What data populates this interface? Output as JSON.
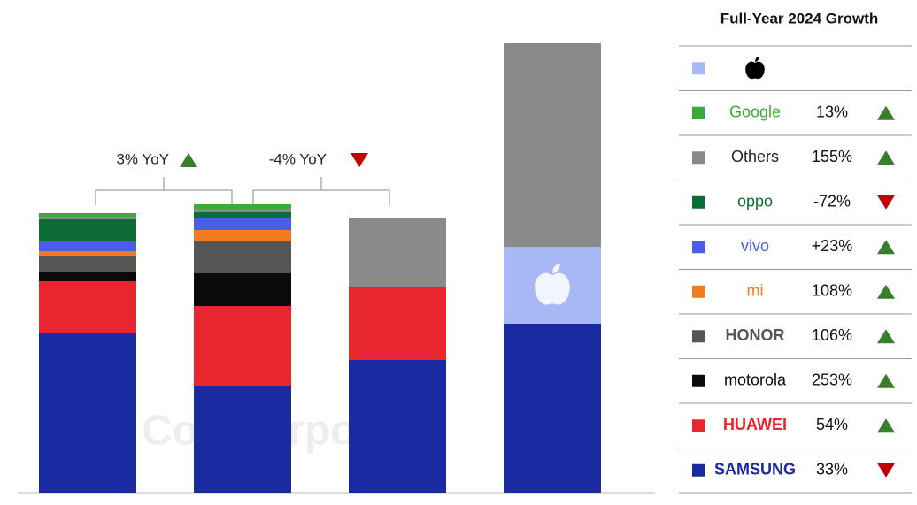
{
  "chart_data": {
    "type": "stacked_bar",
    "legend_title": "Full-Year 2024 Growth",
    "watermark": "Counterpoint",
    "categories": [
      null,
      null,
      null,
      null
    ],
    "ylim": [
      0,
      520
    ],
    "series": [
      {
        "name": null,
        "color": "#a8b8f5",
        "values": [
          null,
          null,
          null,
          87
        ],
        "growth": null,
        "growth_label": null,
        "trend": null
      },
      {
        "name": "Google",
        "color": "#3aaa3a",
        "values": [
          4,
          5,
          null,
          null
        ],
        "growth": 13,
        "growth_label": "13%",
        "trend": "up"
      },
      {
        "name": "Others",
        "color": "#8a8a8a",
        "values": [
          3,
          4,
          79,
          230
        ],
        "growth": 155,
        "growth_label": "155%",
        "trend": "up"
      },
      {
        "name": "oppo",
        "color": "#0d6b35",
        "values": [
          25,
          7,
          null,
          null
        ],
        "growth": -72,
        "growth_label": "-72%",
        "trend": "down"
      },
      {
        "name": "vivo",
        "color": "#4a5ee8",
        "values": [
          11,
          13,
          null,
          null
        ],
        "growth": 23,
        "growth_label": "+23%",
        "trend": "up"
      },
      {
        "name": "mi",
        "color": "#f47a1f",
        "values": [
          6,
          13,
          null,
          null
        ],
        "growth": 108,
        "growth_label": "108%",
        "trend": "up"
      },
      {
        "name": "HONOR",
        "color": "#555555",
        "values": [
          17,
          36,
          null,
          null
        ],
        "growth": 106,
        "growth_label": "106%",
        "trend": "up"
      },
      {
        "name": "motorola",
        "color": "#0a0a0a",
        "values": [
          11,
          37,
          null,
          null
        ],
        "growth": 253,
        "growth_label": "253%",
        "trend": "up"
      },
      {
        "name": "HUAWEI",
        "color": "#e8262e",
        "values": [
          58,
          90,
          82,
          null
        ],
        "growth": 54,
        "growth_label": "54%",
        "trend": "up"
      },
      {
        "name": "SAMSUNG",
        "color": "#1a2aa0",
        "values": [
          181,
          121,
          150,
          191
        ],
        "growth": 33,
        "growth_label": "33%",
        "trend": "down"
      }
    ],
    "annotations": [
      {
        "text": "3% YoY",
        "trend": "up"
      },
      {
        "text": "-4% YoY",
        "trend": "down"
      }
    ]
  }
}
